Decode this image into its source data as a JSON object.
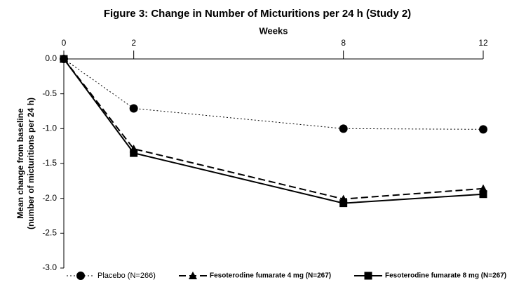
{
  "chart_data": {
    "type": "line",
    "title": "Figure 3: Change in Number of Micturitions per 24 h (Study 2)",
    "xlabel": "Weeks",
    "ylabel": [
      "Mean change from baseline",
      "(number of micturitions per 24 h)"
    ],
    "x": [
      0,
      2,
      8,
      12
    ],
    "xlim": [
      0,
      12
    ],
    "xticks": [
      0,
      2,
      8,
      12
    ],
    "ylim": [
      -3,
      0
    ],
    "yticks": [
      {
        "value": 0,
        "label": "0.0"
      },
      -0.5,
      {
        "value": -1,
        "label": "-1.0"
      },
      -1.5,
      {
        "value": -2,
        "label": "-2.0"
      },
      -2.5,
      {
        "value": -3,
        "label": "-3.0"
      }
    ],
    "grid": false,
    "legend": "bottom",
    "series": [
      {
        "name": "Placebo (N=266)",
        "color": "#000000",
        "dash": "dotted",
        "marker": "circle",
        "values": [
          0,
          -0.71,
          -1.0,
          -1.01
        ]
      },
      {
        "name": "Fesoterodine fumarate 4 mg (N=267)",
        "color": "#000000",
        "dash": "dashed",
        "marker": "triangle",
        "values": [
          0,
          -1.29,
          -2.01,
          -1.86
        ]
      },
      {
        "name": "Fesoterodine fumarate 8 mg (N=267)",
        "color": "#000000",
        "dash": "solid",
        "marker": "square",
        "values": [
          0,
          -1.35,
          -2.07,
          -1.94
        ]
      }
    ]
  }
}
